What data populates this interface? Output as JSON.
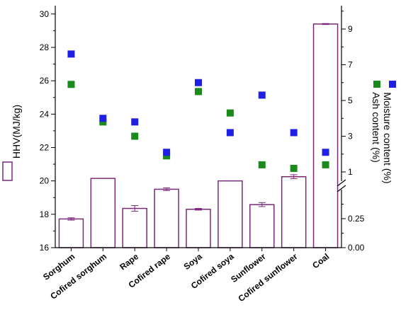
{
  "chart_data": {
    "type": "bar",
    "categories": [
      "Sorghum",
      "Cofired sorghum",
      "Rape",
      "Cofired rape",
      "Soya",
      "Cofired soya",
      "Sunflower",
      "Cofired sunflower",
      "Coal"
    ],
    "series": [
      {
        "name": "HHV(MJ/kg)",
        "type": "bar",
        "axis": "left",
        "color": "#7a2a7a",
        "values": [
          17.72,
          20.15,
          18.35,
          19.5,
          18.3,
          20.0,
          18.58,
          20.25,
          29.4
        ],
        "error": [
          0.07,
          0,
          0.17,
          0.08,
          0.05,
          0,
          0.12,
          0.12,
          0.03
        ]
      },
      {
        "name": "Moisture content",
        "type": "scatter",
        "axis": "right",
        "color": "#1f1fe6",
        "values": [
          7.6,
          4.0,
          3.8,
          2.1,
          6.0,
          3.2,
          5.3,
          3.2,
          2.1
        ]
      },
      {
        "name": "Ash content",
        "type": "scatter",
        "axis": "right",
        "color": "#1a8a1a",
        "values": [
          5.9,
          3.8,
          3.0,
          1.9,
          5.5,
          4.3,
          1.4,
          1.2,
          1.4
        ]
      }
    ],
    "left_axis": {
      "label": "HHV(MJ/kg)",
      "range": [
        16,
        30.5
      ],
      "ticks": [
        "16",
        "18",
        "20",
        "22",
        "24",
        "26",
        "28",
        "30"
      ]
    },
    "right_axis": {
      "label_parts": [
        "Moisture content (%)",
        "Ash content (%)"
      ],
      "break": true,
      "lower_segment": {
        "range": [
          0,
          0.5
        ],
        "ticks": [
          "0.00",
          "0.25"
        ]
      },
      "upper_segment": {
        "range": [
          0,
          10
        ],
        "ticks": [
          "1",
          "3",
          "5",
          "7",
          "9"
        ]
      }
    },
    "legend": {
      "hhv_label": "HHV(MJ/kg)",
      "placement": "left-of-left-axis-title",
      "moisture_marker_color": "#1f1fe6",
      "ash_marker_color": "#1a8a1a"
    },
    "grid": false
  }
}
